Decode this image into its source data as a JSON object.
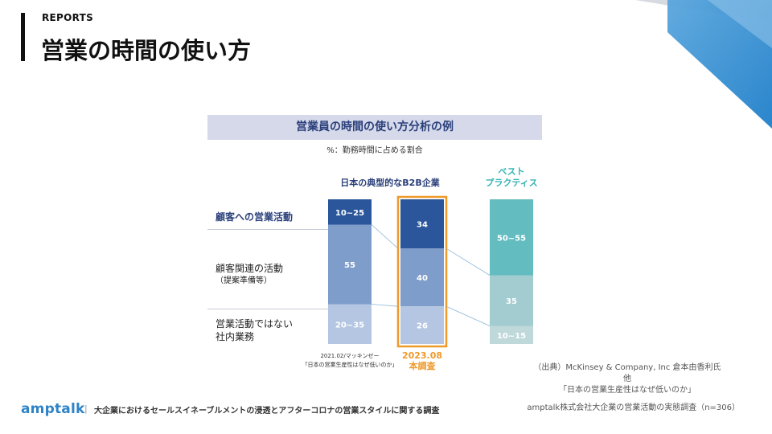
{
  "header": {
    "eyebrow": "REPORTS",
    "title": "営業の時間の使い方"
  },
  "chart_data": {
    "type": "bar",
    "stacked": true,
    "title": "営業員の時間の使い方分析の例",
    "subtitle": "%：勤務時間に占める割合",
    "group_label_main": "日本の典型的なB2B企業",
    "group_label_best_line1": "ベスト",
    "group_label_best_line2": "プラクティス",
    "categories": [
      {
        "label": "顧客への営業活動",
        "sub": ""
      },
      {
        "label": "顧客関連の活動",
        "sub": "（提案準備等）"
      },
      {
        "label": "営業活動ではない",
        "sub": "社内業務"
      }
    ],
    "bars": [
      {
        "name": "2021.02 McKinsey",
        "segments": [
          {
            "label": "10~25",
            "value": 17.5
          },
          {
            "label": "55",
            "value": 55
          },
          {
            "label": "20~35",
            "value": 27.5
          }
        ]
      },
      {
        "name": "2023.08 本調査",
        "highlight": true,
        "segments": [
          {
            "label": "34",
            "value": 34
          },
          {
            "label": "40",
            "value": 40
          },
          {
            "label": "26",
            "value": 26
          }
        ]
      },
      {
        "name": "ベストプラクティス",
        "segments": [
          {
            "label": "50~55",
            "value": 52.5
          },
          {
            "label": "35",
            "value": 35
          },
          {
            "label": "10~15",
            "value": 12.5
          }
        ]
      }
    ],
    "colors": {
      "bar1": [
        "#2b569b",
        "#7f9dcb",
        "#b4c6e2"
      ],
      "bar2": [
        "#2b569b",
        "#7f9dcb",
        "#b4c6e2"
      ],
      "bar3": [
        "#63bcc0",
        "#a2cccf",
        "#bfd8da"
      ],
      "highlight": "#ee9a2b"
    }
  },
  "footnotes": {
    "source_line1": "2021.02/マッキンゼー",
    "source_line2": "「日本の営業生産性はなぜ低いのか」",
    "new_line1": "2023.08",
    "new_line2": "本調査"
  },
  "citation": {
    "line1": "（出典）McKinsey & Company, Inc 倉本由香利氏他",
    "line2": "「日本の営業生産性はなぜ低いのか」"
  },
  "survey_note": "amptalk株式会社大企業の営業活動の実態調査（n=306）",
  "footer": {
    "logo": "amptalk",
    "separator": "|",
    "text": "大企業におけるセールスイネーブルメントの浸透とアフターコロナの営業スタイルに関する調査"
  }
}
